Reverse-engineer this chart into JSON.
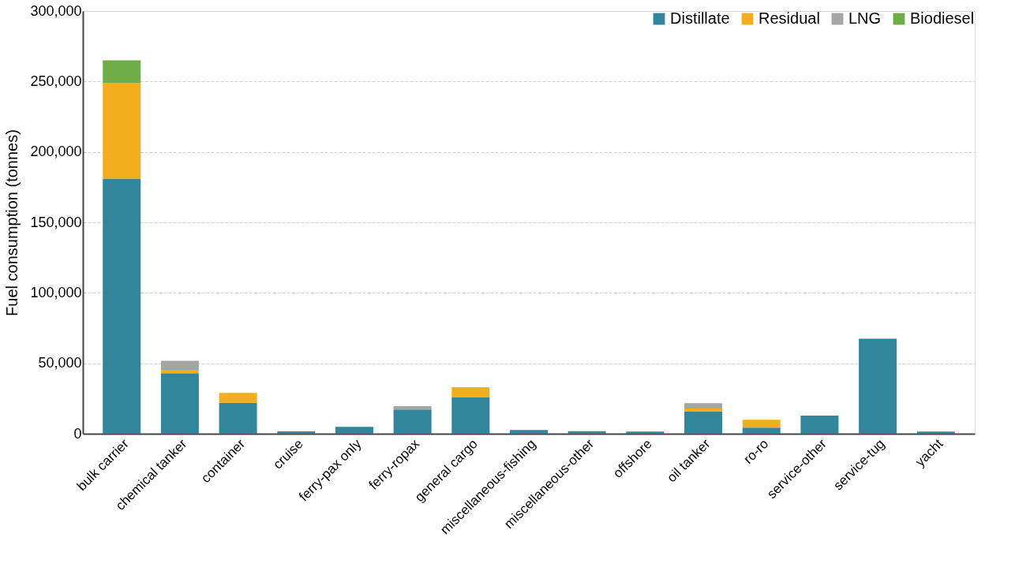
{
  "chart_data": {
    "type": "bar",
    "stacked": true,
    "ylabel": "Fuel consumption (tonnes)",
    "categories": [
      "bulk carrier",
      "chemical tanker",
      "container",
      "cruise",
      "ferry-pax only",
      "ferry-ropax",
      "general cargo",
      "miscellaneous-fishing",
      "miscellaneous-other",
      "offshore",
      "oil tanker",
      "ro-ro",
      "service-other",
      "service-tug",
      "yacht"
    ],
    "series": [
      {
        "name": "Distillate",
        "color": "#31869b",
        "values": [
          181000,
          43000,
          22000,
          1700,
          4900,
          17200,
          26000,
          2600,
          1800,
          1500,
          16000,
          4300,
          12900,
          67500,
          1500
        ]
      },
      {
        "name": "Residual",
        "color": "#f2ae1c",
        "values": [
          68000,
          2300,
          7000,
          null,
          null,
          null,
          7000,
          null,
          null,
          null,
          1900,
          5600,
          null,
          null,
          null
        ]
      },
      {
        "name": "LNG",
        "color": "#a5a5a5",
        "values": [
          null,
          6500,
          null,
          null,
          null,
          2400,
          null,
          null,
          null,
          null,
          3800,
          null,
          null,
          null,
          null
        ]
      },
      {
        "name": "Biodiesel",
        "color": "#70ad47",
        "values": [
          16000,
          null,
          null,
          null,
          null,
          null,
          null,
          null,
          null,
          null,
          null,
          null,
          null,
          null,
          null
        ]
      }
    ],
    "ylim": [
      0,
      300000
    ],
    "yticks": [
      0,
      {
        "value": 50000,
        "label": "50,000"
      },
      {
        "value": 100000,
        "label": "100,000"
      },
      {
        "value": 150000,
        "label": "150,000"
      },
      {
        "value": 200000,
        "label": "200,000"
      },
      {
        "value": 250000,
        "label": "250,000"
      },
      {
        "value": 300000,
        "label": "300,000"
      }
    ],
    "grid": "y",
    "legend": "top right"
  }
}
